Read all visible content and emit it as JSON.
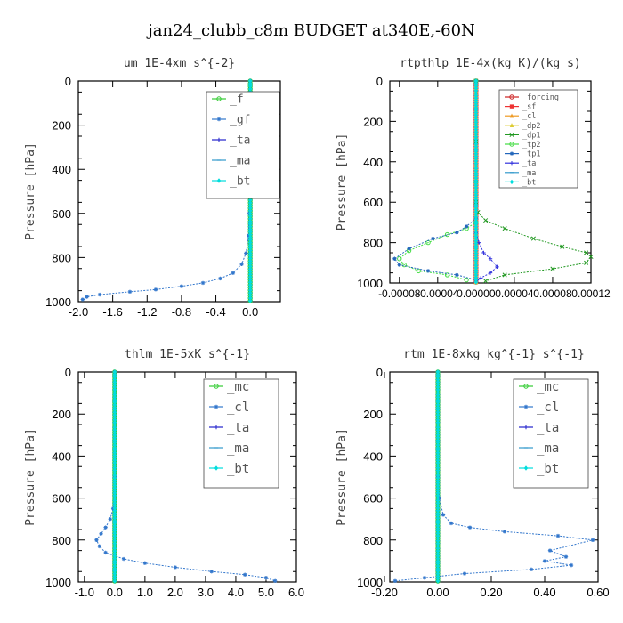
{
  "title": "jan24_clubb_c8m  BUDGET at340E,-60N",
  "chart_data": [
    {
      "type": "line",
      "title": "um  1E-4xm s^{-2}",
      "ylabel": "Pressure [hPa]",
      "xlim": [
        -2.0,
        0.35
      ],
      "ylim": [
        1000,
        0
      ],
      "xticks": [
        "-2.0",
        "-1.6",
        "-1.2",
        "-0.8",
        "-0.4",
        "0.0"
      ],
      "xtick_values": [
        -2.0,
        -1.6,
        -1.2,
        -0.8,
        -0.4,
        0.0
      ],
      "yticks": [
        "0",
        "200",
        "400",
        "600",
        "800",
        "1000"
      ],
      "legend_position": "top-right",
      "series": [
        {
          "name": "_f",
          "color": "#33cc33",
          "marker": "o",
          "x": [
            0,
            0,
            0,
            0,
            0,
            0,
            0,
            0,
            0,
            0,
            0,
            0
          ],
          "y": [
            0,
            100,
            200,
            300,
            400,
            500,
            600,
            700,
            800,
            900,
            950,
            1000
          ]
        },
        {
          "name": "_gf",
          "color": "#3377cc",
          "marker": "*",
          "x": [
            0,
            0,
            0,
            -0.01,
            -0.02,
            -0.05,
            -0.1,
            -0.2,
            -0.35,
            -0.55,
            -0.8,
            -1.1,
            -1.4,
            -1.75,
            -1.9,
            -1.95
          ],
          "y": [
            0,
            200,
            400,
            600,
            700,
            780,
            830,
            870,
            895,
            915,
            930,
            945,
            955,
            968,
            978,
            990
          ]
        },
        {
          "name": "_ta",
          "color": "#2222cc",
          "marker": "+",
          "x": [
            0,
            0,
            0,
            0,
            0,
            0
          ],
          "y": [
            0,
            200,
            400,
            600,
            800,
            1000
          ]
        },
        {
          "name": "_ma",
          "color": "#3399cc",
          "marker": "-",
          "x": [
            0,
            0,
            0,
            0,
            0,
            0
          ],
          "y": [
            0,
            200,
            400,
            600,
            800,
            1000
          ]
        },
        {
          "name": "_bt",
          "color": "#00dddd",
          "marker": "d",
          "x": [
            0,
            0,
            0,
            0,
            0,
            0
          ],
          "y": [
            0,
            200,
            400,
            600,
            800,
            1000
          ]
        }
      ]
    },
    {
      "type": "line",
      "title": "rtpthlp  1E-4x(kg K)/(kg s)",
      "ylabel": "Pressure [hPa]",
      "xlim": [
        -9e-05,
        0.00012
      ],
      "ylim": [
        1000,
        0
      ],
      "xticks": [
        "-0.00008",
        "-0.00004",
        "0.00000",
        "0.00004",
        "0.00008",
        "0.00012"
      ],
      "xtick_values": [
        -8e-05,
        -4e-05,
        0.0,
        4e-05,
        8e-05,
        0.00012
      ],
      "yticks": [
        "0",
        "200",
        "400",
        "600",
        "800",
        "1000"
      ],
      "legend_position": "top-right",
      "series": [
        {
          "name": "_forcing",
          "color": "#cc2222",
          "marker": "o",
          "x": [
            0,
            0,
            0,
            0,
            0,
            0
          ],
          "y": [
            0,
            200,
            400,
            600,
            800,
            1000
          ]
        },
        {
          "name": "_sf",
          "color": "#ee3333",
          "marker": "s",
          "x": [
            0,
            0,
            0,
            0,
            0,
            0
          ],
          "y": [
            0,
            200,
            400,
            600,
            800,
            1000
          ]
        },
        {
          "name": "_cl",
          "color": "#ee9922",
          "marker": "^",
          "x": [
            0,
            0,
            0,
            0,
            0,
            0
          ],
          "y": [
            0,
            200,
            400,
            600,
            800,
            1000
          ]
        },
        {
          "name": "_dp2",
          "color": "#ddcc33",
          "marker": "^",
          "x": [
            0,
            0,
            0,
            0,
            0,
            0
          ],
          "y": [
            0,
            200,
            400,
            600,
            800,
            1000
          ]
        },
        {
          "name": "_dp1",
          "color": "#229922",
          "marker": "x",
          "x": [
            0,
            0,
            0,
            2e-06,
            1e-05,
            3e-05,
            6e-05,
            9e-05,
            0.000115,
            0.00012,
            0.000115,
            8e-05,
            3e-05,
            1e-05
          ],
          "y": [
            0,
            300,
            600,
            650,
            690,
            730,
            780,
            820,
            850,
            870,
            900,
            930,
            960,
            990
          ]
        },
        {
          "name": "_tp2",
          "color": "#44dd44",
          "marker": "o",
          "x": [
            0,
            0,
            0,
            -1e-05,
            -3e-05,
            -5e-05,
            -7e-05,
            -8e-05,
            -7.5e-05,
            -6e-05,
            -3e-05,
            -1e-05
          ],
          "y": [
            0,
            500,
            700,
            730,
            760,
            800,
            840,
            880,
            910,
            940,
            960,
            985
          ]
        },
        {
          "name": "_tp1",
          "color": "#2266bb",
          "marker": "*",
          "x": [
            0,
            0,
            0,
            -1e-05,
            -2e-05,
            -4.5e-05,
            -7e-05,
            -8.5e-05,
            -8e-05,
            -5e-05,
            -2e-05,
            0
          ],
          "y": [
            0,
            500,
            680,
            720,
            750,
            780,
            830,
            880,
            910,
            940,
            960,
            985
          ]
        },
        {
          "name": "_ta",
          "color": "#3333dd",
          "marker": "+",
          "x": [
            0,
            0,
            0,
            3e-06,
            8e-06,
            1.5e-05,
            2.2e-05,
            1.5e-05,
            5e-06,
            0
          ],
          "y": [
            0,
            500,
            750,
            800,
            850,
            880,
            920,
            950,
            975,
            995
          ]
        },
        {
          "name": "_ma",
          "color": "#3399cc",
          "marker": "-",
          "x": [
            0,
            0,
            0,
            0,
            0,
            0
          ],
          "y": [
            0,
            200,
            400,
            600,
            800,
            1000
          ]
        },
        {
          "name": "_bt",
          "color": "#00dddd",
          "marker": "d",
          "x": [
            0,
            0,
            0,
            0,
            0,
            0
          ],
          "y": [
            0,
            200,
            400,
            600,
            800,
            1000
          ]
        }
      ]
    },
    {
      "type": "line",
      "title": "thlm  1E-5xK s^{-1}",
      "ylabel": "Pressure [hPa]",
      "xlim": [
        -1.2,
        6.0
      ],
      "ylim": [
        1000,
        0
      ],
      "xticks": [
        "-1.0",
        "0.0",
        "1.0",
        "2.0",
        "3.0",
        "4.0",
        "5.0",
        "6.0"
      ],
      "xtick_values": [
        -1.0,
        0.0,
        1.0,
        2.0,
        3.0,
        4.0,
        5.0,
        6.0
      ],
      "yticks": [
        "0",
        "200",
        "400",
        "600",
        "800",
        "1000"
      ],
      "legend_position": "top-right",
      "series": [
        {
          "name": "_mc",
          "color": "#33cc33",
          "marker": "o",
          "x": [
            0,
            0,
            0,
            0,
            0,
            0
          ],
          "y": [
            0,
            200,
            400,
            600,
            800,
            1000
          ]
        },
        {
          "name": "_cl",
          "color": "#3377cc",
          "marker": "*",
          "x": [
            0,
            0,
            -0.05,
            -0.15,
            -0.3,
            -0.45,
            -0.6,
            -0.5,
            -0.3,
            0.3,
            1.0,
            2.0,
            3.2,
            4.3,
            5.0,
            5.3
          ],
          "y": [
            0,
            500,
            650,
            700,
            740,
            770,
            800,
            830,
            860,
            890,
            910,
            930,
            950,
            965,
            980,
            995
          ]
        },
        {
          "name": "_ta",
          "color": "#2222cc",
          "marker": "+",
          "x": [
            0,
            0,
            0,
            0,
            0,
            0
          ],
          "y": [
            0,
            200,
            400,
            600,
            800,
            1000
          ]
        },
        {
          "name": "_ma",
          "color": "#3399cc",
          "marker": "-",
          "x": [
            0,
            0,
            0,
            0,
            0,
            0
          ],
          "y": [
            0,
            200,
            400,
            600,
            800,
            1000
          ]
        },
        {
          "name": "_bt",
          "color": "#00dddd",
          "marker": "d",
          "x": [
            0,
            0,
            0,
            0,
            0,
            0
          ],
          "y": [
            0,
            200,
            400,
            600,
            800,
            1000
          ]
        }
      ]
    },
    {
      "type": "line",
      "title": "rtm  1E-8xkg kg^{-1} s^{-1}",
      "ylabel": "Pressure [hPa]",
      "xlim": [
        -0.18,
        0.6
      ],
      "ylim": [
        1000,
        0
      ],
      "xticks": [
        "-0.20",
        "0.00",
        "0.20",
        "0.40",
        "0.60"
      ],
      "xtick_values": [
        -0.2,
        0.0,
        0.2,
        0.4,
        0.6
      ],
      "yticks": [
        "0",
        "200",
        "400",
        "600",
        "800",
        "1000"
      ],
      "legend_position": "top-right",
      "series": [
        {
          "name": "_mc",
          "color": "#33cc33",
          "marker": "o",
          "x": [
            0,
            0,
            0,
            0,
            0,
            0
          ],
          "y": [
            0,
            200,
            400,
            600,
            800,
            1000
          ]
        },
        {
          "name": "_cl",
          "color": "#3377cc",
          "marker": "*",
          "x": [
            0,
            0,
            0.005,
            0.02,
            0.05,
            0.12,
            0.25,
            0.45,
            0.58,
            0.42,
            0.48,
            0.4,
            0.5,
            0.35,
            0.1,
            -0.05,
            -0.16
          ],
          "y": [
            0,
            500,
            600,
            680,
            720,
            740,
            760,
            780,
            800,
            850,
            880,
            900,
            920,
            940,
            960,
            980,
            995
          ]
        },
        {
          "name": "_ta",
          "color": "#2222cc",
          "marker": "+",
          "x": [
            0,
            0,
            0,
            0,
            0,
            0
          ],
          "y": [
            0,
            200,
            400,
            600,
            800,
            1000
          ]
        },
        {
          "name": "_ma",
          "color": "#3399cc",
          "marker": "-",
          "x": [
            0,
            0,
            0,
            0,
            0,
            0
          ],
          "y": [
            0,
            200,
            400,
            600,
            800,
            1000
          ]
        },
        {
          "name": "_bt",
          "color": "#00dddd",
          "marker": "d",
          "x": [
            0,
            0,
            0,
            0,
            0,
            0
          ],
          "y": [
            0,
            200,
            400,
            600,
            800,
            1000
          ]
        }
      ]
    }
  ]
}
